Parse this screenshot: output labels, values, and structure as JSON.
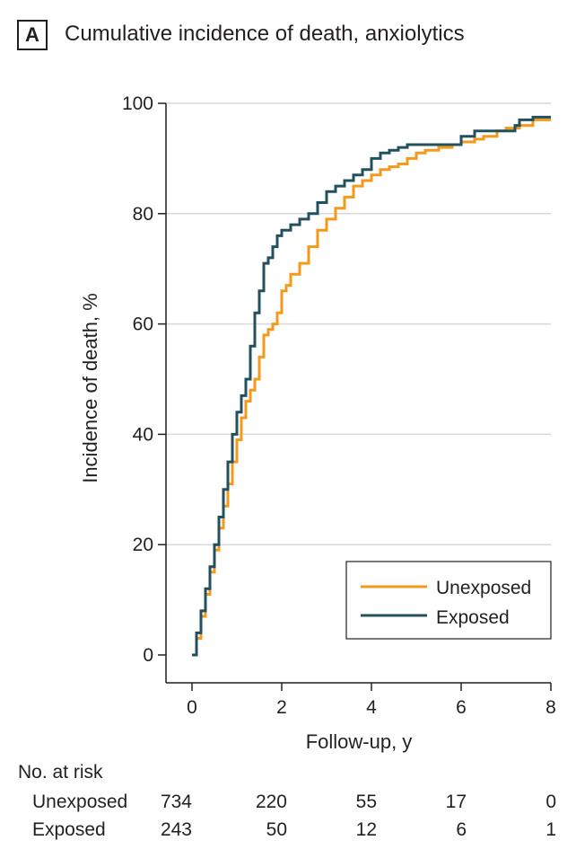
{
  "panel_label": "A",
  "title": "Cumulative incidence of death, anxiolytics",
  "colors": {
    "unexposed": "#f39a1d",
    "exposed": "#23505e",
    "grid": "#d9d9d9",
    "axis": "#231f20"
  },
  "chart_data": {
    "type": "line",
    "title": "Cumulative incidence of death, anxiolytics",
    "xlabel": "Follow-up, y",
    "ylabel": "Incidence of death, %",
    "xlim": [
      0,
      8
    ],
    "ylim": [
      0,
      100
    ],
    "xticks": [
      0,
      2,
      4,
      6,
      8
    ],
    "yticks": [
      0,
      20,
      40,
      60,
      80,
      100
    ],
    "grid": true,
    "legend_position": "bottom-right",
    "series": [
      {
        "name": "Unexposed",
        "x": [
          0,
          0.1,
          0.2,
          0.3,
          0.4,
          0.5,
          0.6,
          0.7,
          0.8,
          0.9,
          1.0,
          1.1,
          1.2,
          1.3,
          1.4,
          1.5,
          1.6,
          1.7,
          1.8,
          1.9,
          2.0,
          2.1,
          2.2,
          2.4,
          2.6,
          2.8,
          3.0,
          3.2,
          3.4,
          3.6,
          3.8,
          4.0,
          4.2,
          4.4,
          4.6,
          4.8,
          5.0,
          5.2,
          5.5,
          5.8,
          6.0,
          6.3,
          6.5,
          6.8,
          7.0,
          7.3,
          7.6,
          8.0
        ],
        "values": [
          0,
          3,
          7,
          11,
          15,
          19,
          23,
          27,
          31,
          35,
          39,
          43,
          46,
          48,
          50,
          54,
          58,
          59,
          60,
          62,
          66,
          67,
          69,
          71,
          74,
          77,
          79,
          81,
          83,
          85,
          86,
          87,
          88,
          88.5,
          89,
          90,
          91,
          91.5,
          92,
          92.5,
          93,
          93.5,
          94,
          95,
          95.5,
          96,
          97,
          97
        ]
      },
      {
        "name": "Exposed",
        "x": [
          0,
          0.1,
          0.2,
          0.3,
          0.4,
          0.5,
          0.6,
          0.7,
          0.8,
          0.9,
          1.0,
          1.1,
          1.2,
          1.3,
          1.4,
          1.5,
          1.6,
          1.7,
          1.8,
          1.9,
          2.0,
          2.2,
          2.4,
          2.6,
          2.8,
          3.0,
          3.2,
          3.4,
          3.6,
          3.8,
          4.0,
          4.2,
          4.4,
          4.6,
          4.8,
          5.0,
          5.3,
          5.6,
          5.9,
          6.0,
          6.3,
          6.6,
          6.9,
          7.2,
          7.3,
          7.6,
          8.0
        ],
        "values": [
          0,
          4,
          8,
          12,
          16,
          20,
          25,
          30,
          35,
          40,
          44,
          47,
          50,
          56,
          62,
          66,
          71,
          72,
          74,
          76,
          77,
          78,
          79,
          80,
          82,
          84,
          85,
          86,
          87,
          88,
          90,
          91,
          91.5,
          92,
          92.5,
          92.5,
          92.5,
          92.5,
          92.5,
          94,
          95,
          95,
          95,
          96,
          97,
          97.5,
          97.5
        ]
      }
    ]
  },
  "risk_table": {
    "heading": "No. at risk",
    "rows": [
      {
        "label": "Unexposed",
        "values": [
          "734",
          "220",
          "55",
          "17",
          "0"
        ]
      },
      {
        "label": "Exposed",
        "values": [
          "243",
          "50",
          "12",
          "6",
          "1"
        ]
      }
    ]
  }
}
